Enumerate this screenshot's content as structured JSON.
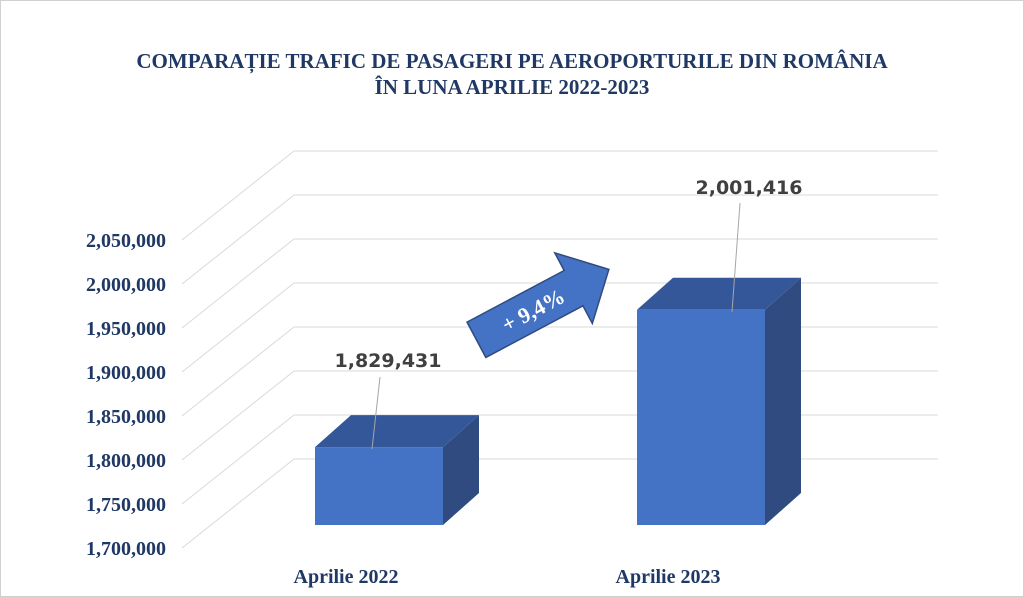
{
  "chart_data": {
    "type": "bar",
    "title_line1": "COMPARAȚIE TRAFIC DE PASAGERI PE AEROPORTURILE DIN ROMÂNIA",
    "title_line2": "ÎN LUNA APRILIE 2022-2023",
    "categories": [
      "Aprilie 2022",
      "Aprilie 2023"
    ],
    "values": [
      1829431,
      2001416
    ],
    "data_labels": [
      "1,829,431",
      "2,001,416"
    ],
    "ylim": [
      1700000,
      2050000
    ],
    "yticks": [
      1700000,
      1750000,
      1800000,
      1850000,
      1900000,
      1950000,
      2000000,
      2050000
    ],
    "ytick_labels": [
      "1,700,000",
      "1,750,000",
      "1,800,000",
      "1,850,000",
      "1,900,000",
      "1,950,000",
      "2,000,000",
      "2,050,000"
    ],
    "annotation": "+ 9,4%",
    "grid": true,
    "style": "3d-column",
    "colors": {
      "front": "#4472c4",
      "side": "#2f4b80",
      "top": "#34579a",
      "grid": "#d9d9d9",
      "text": "#1f3864",
      "label": "#404040"
    }
  }
}
